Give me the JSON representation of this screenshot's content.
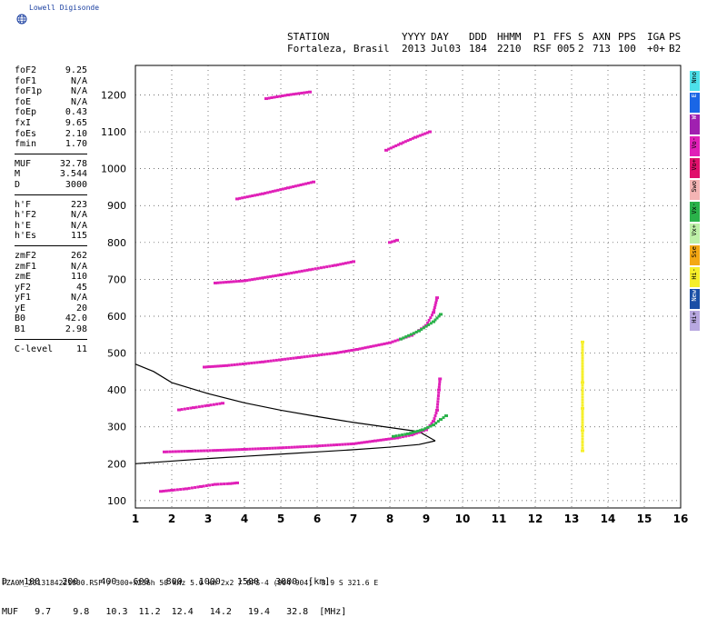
{
  "brand": {
    "name": "Lowell Digisonde",
    "logo_icon": "globe-icon"
  },
  "header": {
    "line1": [
      "STATION",
      "YYYY",
      "DAY",
      "DDD",
      "HHMM",
      "P1",
      "FFS",
      "S",
      "AXN",
      "PPS",
      "IGA",
      "PS"
    ],
    "line2": [
      "Fortaleza, Brasil",
      "2013",
      "Jul03",
      "184",
      "2210",
      "RSF",
      "005",
      "2",
      "713",
      "100",
      "+0+",
      "B2"
    ]
  },
  "params": {
    "group1": [
      {
        "label": "foF2",
        "value": "9.25"
      },
      {
        "label": "foF1",
        "value": "N/A"
      },
      {
        "label": "foF1p",
        "value": "N/A"
      },
      {
        "label": "foE",
        "value": "N/A"
      },
      {
        "label": "foEp",
        "value": "0.43"
      },
      {
        "label": "fxI",
        "value": "9.65"
      },
      {
        "label": "foEs",
        "value": "2.10"
      },
      {
        "label": "fmin",
        "value": "1.70"
      }
    ],
    "group2": [
      {
        "label": "MUF",
        "value": "32.78"
      },
      {
        "label": "M",
        "value": "3.544"
      },
      {
        "label": "D",
        "value": "3000"
      }
    ],
    "group3": [
      {
        "label": "h'F",
        "value": "223"
      },
      {
        "label": "h'F2",
        "value": "N/A"
      },
      {
        "label": "h'E",
        "value": "N/A"
      },
      {
        "label": "h'Es",
        "value": "115"
      }
    ],
    "group4": [
      {
        "label": "zmF2",
        "value": "262"
      },
      {
        "label": "zmF1",
        "value": "N/A"
      },
      {
        "label": "zmE",
        "value": "110"
      },
      {
        "label": "yF2",
        "value": "45"
      },
      {
        "label": "yF1",
        "value": "N/A"
      },
      {
        "label": "yE",
        "value": "20"
      },
      {
        "label": "B0",
        "value": "42.0"
      },
      {
        "label": "B1",
        "value": "2.98"
      }
    ],
    "group5": [
      {
        "label": "C-level",
        "value": "11"
      }
    ]
  },
  "legend": [
    {
      "label": "Nno",
      "color": "#4de0ea"
    },
    {
      "label": "E",
      "color": "#1a66e6"
    },
    {
      "label": "W",
      "color": "#a020b0"
    },
    {
      "label": "Vo-",
      "color": "#e020b8"
    },
    {
      "label": "Vo+",
      "color": "#e0106c"
    },
    {
      "label": "Swo",
      "color": "#f4b4b4"
    },
    {
      "label": "Vx-",
      "color": "#2ab24a"
    },
    {
      "label": "Vx+",
      "color": "#bef0a8"
    },
    {
      "label": "Sse",
      "color": "#f4a814"
    },
    {
      "label": "Hi-",
      "color": "#f6ef2a"
    },
    {
      "label": "New",
      "color": "#1a4fa6"
    },
    {
      "label": "Hi+",
      "color": "#b8a8e0"
    }
  ],
  "chart_data": {
    "type": "scatter",
    "title": "",
    "xlabel": "",
    "ylabel": "",
    "xlim": [
      1,
      16
    ],
    "ylim": [
      80,
      1280
    ],
    "x_ticks": [
      1,
      2,
      3,
      4,
      5,
      6,
      7,
      8,
      9,
      10,
      11,
      12,
      13,
      14,
      15,
      16
    ],
    "y_ticks": [
      100,
      200,
      300,
      400,
      500,
      600,
      700,
      800,
      900,
      1000,
      1100,
      1200
    ],
    "grid": "dotted",
    "traces": [
      {
        "name": "F-trace O",
        "color": "#e020b8",
        "points": [
          [
            1.8,
            232
          ],
          [
            2.5,
            234
          ],
          [
            3.2,
            236
          ],
          [
            4.0,
            239
          ],
          [
            5.0,
            243
          ],
          [
            6.0,
            248
          ],
          [
            7.0,
            254
          ],
          [
            7.6,
            262
          ],
          [
            8.2,
            270
          ],
          [
            8.6,
            278
          ],
          [
            9.0,
            292
          ],
          [
            9.2,
            315
          ],
          [
            9.3,
            345
          ],
          [
            9.35,
            400
          ],
          [
            9.38,
            430
          ]
        ]
      },
      {
        "name": "F-trace X",
        "color": "#2ab24a",
        "points": [
          [
            8.1,
            274
          ],
          [
            8.5,
            281
          ],
          [
            8.9,
            292
          ],
          [
            9.2,
            305
          ],
          [
            9.4,
            320
          ],
          [
            9.55,
            330
          ]
        ]
      },
      {
        "name": "F 2-hop",
        "color": "#e020b8",
        "points": [
          [
            2.9,
            462
          ],
          [
            3.5,
            466
          ],
          [
            4.5,
            476
          ],
          [
            5.5,
            488
          ],
          [
            6.5,
            500
          ],
          [
            7.1,
            510
          ],
          [
            8.0,
            528
          ],
          [
            8.6,
            548
          ],
          [
            9.0,
            575
          ],
          [
            9.2,
            610
          ],
          [
            9.3,
            650
          ]
        ]
      },
      {
        "name": "F 2-hop X",
        "color": "#2ab24a",
        "points": [
          [
            8.3,
            538
          ],
          [
            8.8,
            560
          ],
          [
            9.2,
            585
          ],
          [
            9.4,
            605
          ]
        ]
      },
      {
        "name": "F 3-hop",
        "color": "#e020b8",
        "points": [
          [
            3.2,
            690
          ],
          [
            4.0,
            696
          ],
          [
            5.0,
            712
          ],
          [
            5.8,
            726
          ],
          [
            6.5,
            738
          ],
          [
            7.0,
            748
          ]
        ]
      },
      {
        "name": "F 4-hop",
        "color": "#e020b8",
        "points": [
          [
            3.8,
            918
          ],
          [
            4.5,
            932
          ],
          [
            5.2,
            948
          ],
          [
            5.9,
            964
          ]
        ]
      },
      {
        "name": "F 5-hop",
        "color": "#e020b8",
        "points": [
          [
            4.6,
            1190
          ],
          [
            5.2,
            1200
          ],
          [
            5.8,
            1208
          ]
        ]
      },
      {
        "name": "F 4-hop high",
        "color": "#e020b8",
        "points": [
          [
            7.9,
            1050
          ],
          [
            8.3,
            1068
          ],
          [
            8.7,
            1085
          ],
          [
            9.1,
            1100
          ]
        ]
      },
      {
        "name": "Es",
        "color": "#e020b8",
        "points": [
          [
            2.2,
            346
          ],
          [
            2.6,
            352
          ],
          [
            3.0,
            358
          ],
          [
            3.4,
            364
          ]
        ]
      },
      {
        "name": "Es 2",
        "color": "#e020b8",
        "points": [
          [
            8.0,
            800
          ],
          [
            8.2,
            806
          ]
        ]
      },
      {
        "name": "Es low",
        "color": "#e020b8",
        "points": [
          [
            1.7,
            125
          ],
          [
            2.0,
            128
          ],
          [
            2.4,
            132
          ],
          [
            2.8,
            138
          ],
          [
            3.2,
            144
          ],
          [
            3.6,
            146
          ],
          [
            3.8,
            148
          ]
        ]
      },
      {
        "name": "High-O",
        "color": "#f6ef2a",
        "points": [
          [
            13.3,
            530
          ],
          [
            13.3,
            420
          ],
          [
            13.3,
            350
          ],
          [
            13.3,
            290
          ],
          [
            13.3,
            235
          ]
        ]
      }
    ],
    "profile": {
      "name": "Electron density profile",
      "color": "#000000",
      "upper": [
        [
          1.0,
          470
        ],
        [
          1.5,
          450
        ],
        [
          2.0,
          420
        ],
        [
          3.0,
          390
        ],
        [
          4.0,
          365
        ],
        [
          5.0,
          345
        ],
        [
          6.0,
          328
        ],
        [
          7.0,
          312
        ],
        [
          8.0,
          298
        ],
        [
          8.8,
          287
        ],
        [
          9.25,
          262
        ]
      ],
      "lower": [
        [
          1.0,
          200
        ],
        [
          2.0,
          207
        ],
        [
          3.0,
          214
        ],
        [
          4.0,
          220
        ],
        [
          5.0,
          226
        ],
        [
          6.0,
          232
        ],
        [
          7.0,
          238
        ],
        [
          8.0,
          245
        ],
        [
          8.8,
          252
        ],
        [
          9.25,
          262
        ]
      ]
    }
  },
  "distance_table": {
    "row1_label": "D",
    "row1_values": [
      "100",
      "200",
      "400",
      "600",
      "800",
      "1000",
      "1500",
      "3000"
    ],
    "row1_unit": "[km]",
    "row2_label": "MUF",
    "row2_values": [
      "9.7",
      "9.8",
      "10.3",
      "11.2",
      "12.4",
      "14.2",
      "19.4",
      "32.8"
    ],
    "row2_unit": "[MHz]"
  },
  "footer": "FZA0M_2013184221000.RSF / 300+x256h 50 kHz 5.0 km 2x2 / DPS-4 (904-904)  3.9 S 321.6 E"
}
